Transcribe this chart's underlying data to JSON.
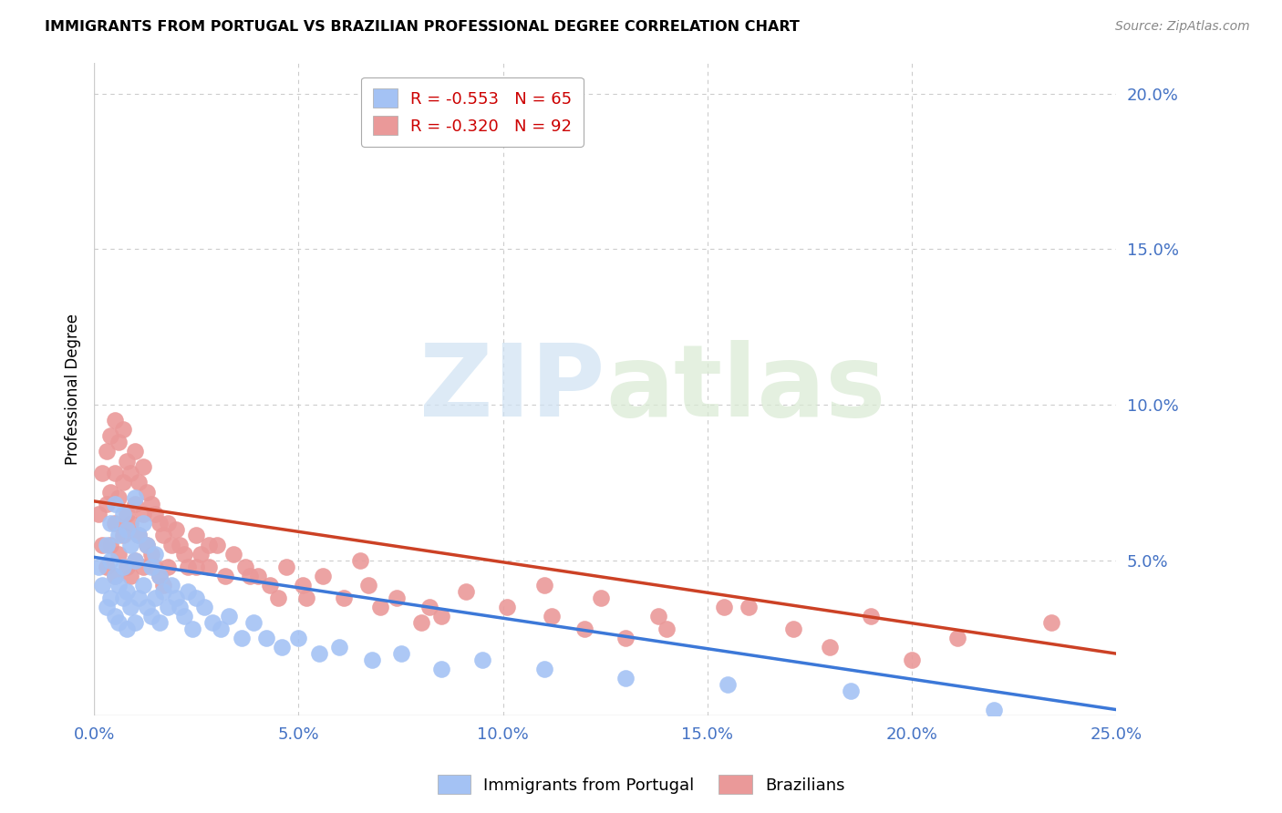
{
  "title": "IMMIGRANTS FROM PORTUGAL VS BRAZILIAN PROFESSIONAL DEGREE CORRELATION CHART",
  "source": "Source: ZipAtlas.com",
  "ylabel_label": "Professional Degree",
  "x_min": 0.0,
  "x_max": 0.25,
  "y_min": 0.0,
  "y_max": 0.21,
  "blue_color": "#a4c2f4",
  "pink_color": "#ea9999",
  "blue_line_color": "#3c78d8",
  "pink_line_color": "#cc4125",
  "tick_color": "#4472c4",
  "grid_color": "#cccccc",
  "watermark_zip_color": "#cfe2f3",
  "watermark_atlas_color": "#d9ead3",
  "legend_entry_1": "R = -0.553   N = 65",
  "legend_entry_2": "R = -0.320   N = 92",
  "legend_text_color": "#cc0000",
  "blue_line_y_start": 0.051,
  "blue_line_y_end": 0.002,
  "pink_line_y_start": 0.069,
  "pink_line_y_end": 0.02,
  "blue_scatter_x": [
    0.001,
    0.002,
    0.003,
    0.003,
    0.004,
    0.004,
    0.004,
    0.005,
    0.005,
    0.005,
    0.006,
    0.006,
    0.006,
    0.007,
    0.007,
    0.007,
    0.008,
    0.008,
    0.008,
    0.009,
    0.009,
    0.01,
    0.01,
    0.01,
    0.011,
    0.011,
    0.012,
    0.012,
    0.013,
    0.013,
    0.014,
    0.014,
    0.015,
    0.015,
    0.016,
    0.016,
    0.017,
    0.018,
    0.019,
    0.02,
    0.021,
    0.022,
    0.023,
    0.024,
    0.025,
    0.027,
    0.029,
    0.031,
    0.033,
    0.036,
    0.039,
    0.042,
    0.046,
    0.05,
    0.055,
    0.06,
    0.068,
    0.075,
    0.085,
    0.095,
    0.11,
    0.13,
    0.155,
    0.185,
    0.22
  ],
  "blue_scatter_y": [
    0.048,
    0.042,
    0.055,
    0.035,
    0.062,
    0.05,
    0.038,
    0.068,
    0.045,
    0.032,
    0.058,
    0.042,
    0.03,
    0.065,
    0.048,
    0.038,
    0.06,
    0.04,
    0.028,
    0.055,
    0.035,
    0.07,
    0.05,
    0.03,
    0.058,
    0.038,
    0.062,
    0.042,
    0.055,
    0.035,
    0.048,
    0.032,
    0.052,
    0.038,
    0.045,
    0.03,
    0.04,
    0.035,
    0.042,
    0.038,
    0.035,
    0.032,
    0.04,
    0.028,
    0.038,
    0.035,
    0.03,
    0.028,
    0.032,
    0.025,
    0.03,
    0.025,
    0.022,
    0.025,
    0.02,
    0.022,
    0.018,
    0.02,
    0.015,
    0.018,
    0.015,
    0.012,
    0.01,
    0.008,
    0.002
  ],
  "pink_scatter_x": [
    0.001,
    0.002,
    0.002,
    0.003,
    0.003,
    0.003,
    0.004,
    0.004,
    0.004,
    0.005,
    0.005,
    0.005,
    0.005,
    0.006,
    0.006,
    0.006,
    0.007,
    0.007,
    0.007,
    0.008,
    0.008,
    0.008,
    0.009,
    0.009,
    0.009,
    0.01,
    0.01,
    0.01,
    0.011,
    0.011,
    0.012,
    0.012,
    0.012,
    0.013,
    0.013,
    0.014,
    0.014,
    0.015,
    0.015,
    0.016,
    0.016,
    0.017,
    0.017,
    0.018,
    0.018,
    0.019,
    0.02,
    0.021,
    0.022,
    0.023,
    0.025,
    0.026,
    0.028,
    0.03,
    0.032,
    0.034,
    0.037,
    0.04,
    0.043,
    0.047,
    0.051,
    0.056,
    0.061,
    0.067,
    0.074,
    0.082,
    0.091,
    0.101,
    0.112,
    0.124,
    0.138,
    0.154,
    0.171,
    0.19,
    0.211,
    0.234,
    0.028,
    0.065,
    0.11,
    0.16,
    0.025,
    0.052,
    0.085,
    0.14,
    0.038,
    0.07,
    0.12,
    0.18,
    0.045,
    0.08,
    0.13,
    0.2
  ],
  "pink_scatter_y": [
    0.065,
    0.078,
    0.055,
    0.085,
    0.068,
    0.048,
    0.09,
    0.072,
    0.055,
    0.095,
    0.078,
    0.062,
    0.045,
    0.088,
    0.07,
    0.052,
    0.092,
    0.075,
    0.058,
    0.082,
    0.065,
    0.048,
    0.078,
    0.062,
    0.045,
    0.085,
    0.068,
    0.05,
    0.075,
    0.058,
    0.08,
    0.065,
    0.048,
    0.072,
    0.055,
    0.068,
    0.052,
    0.065,
    0.048,
    0.062,
    0.045,
    0.058,
    0.042,
    0.062,
    0.048,
    0.055,
    0.06,
    0.055,
    0.052,
    0.048,
    0.058,
    0.052,
    0.048,
    0.055,
    0.045,
    0.052,
    0.048,
    0.045,
    0.042,
    0.048,
    0.042,
    0.045,
    0.038,
    0.042,
    0.038,
    0.035,
    0.04,
    0.035,
    0.032,
    0.038,
    0.032,
    0.035,
    0.028,
    0.032,
    0.025,
    0.03,
    0.055,
    0.05,
    0.042,
    0.035,
    0.048,
    0.038,
    0.032,
    0.028,
    0.045,
    0.035,
    0.028,
    0.022,
    0.038,
    0.03,
    0.025,
    0.018
  ]
}
